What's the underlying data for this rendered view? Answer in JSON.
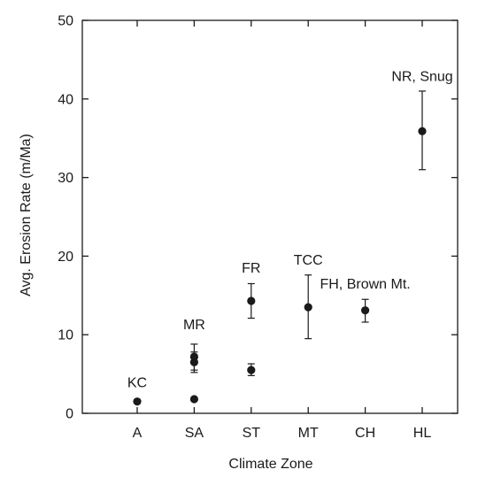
{
  "chart_data": {
    "type": "scatter",
    "title": "",
    "xlabel": "Climate Zone",
    "ylabel": "Avg. Erosion Rate (m/Ma)",
    "categories": [
      "A",
      "SA",
      "ST",
      "MT",
      "CH",
      "HL"
    ],
    "ylim": [
      0,
      50
    ],
    "yticks": [
      "0",
      "10",
      "20",
      "30",
      "40",
      "50"
    ],
    "grid": false,
    "legend": "none",
    "colors": {
      "axis": "#1a1a1a",
      "marker": "#1a1a1a"
    },
    "points": [
      {
        "category": "A",
        "y": 1.5,
        "err_low": 1.3,
        "err_high": 1.7
      },
      {
        "category": "SA",
        "y": 1.8,
        "err_low": 1.8,
        "err_high": 1.8
      },
      {
        "category": "SA",
        "y": 6.5,
        "err_low": 5.2,
        "err_high": 7.8
      },
      {
        "category": "SA",
        "y": 7.2,
        "err_low": 5.5,
        "err_high": 8.8
      },
      {
        "category": "ST",
        "y": 5.5,
        "err_low": 4.8,
        "err_high": 6.3
      },
      {
        "category": "ST",
        "y": 14.3,
        "err_low": 12.1,
        "err_high": 16.5
      },
      {
        "category": "MT",
        "y": 13.5,
        "err_low": 9.5,
        "err_high": 17.6
      },
      {
        "category": "CH",
        "y": 13.1,
        "err_low": 11.6,
        "err_high": 14.5
      },
      {
        "category": "HL",
        "y": 35.9,
        "err_low": 31.0,
        "err_high": 41.0
      }
    ],
    "annotations": [
      {
        "text": "KC",
        "category": "A",
        "y": 3.3
      },
      {
        "text": "MR",
        "category": "SA",
        "y": 10.7
      },
      {
        "text": "FR",
        "category": "ST",
        "y": 17.9
      },
      {
        "text": "TCC",
        "category": "MT",
        "y": 18.9
      },
      {
        "text": "FH, Brown Mt.",
        "category": "CH",
        "y": 15.9
      },
      {
        "text": "NR, Snug",
        "category": "HL",
        "y": 42.3
      }
    ]
  }
}
